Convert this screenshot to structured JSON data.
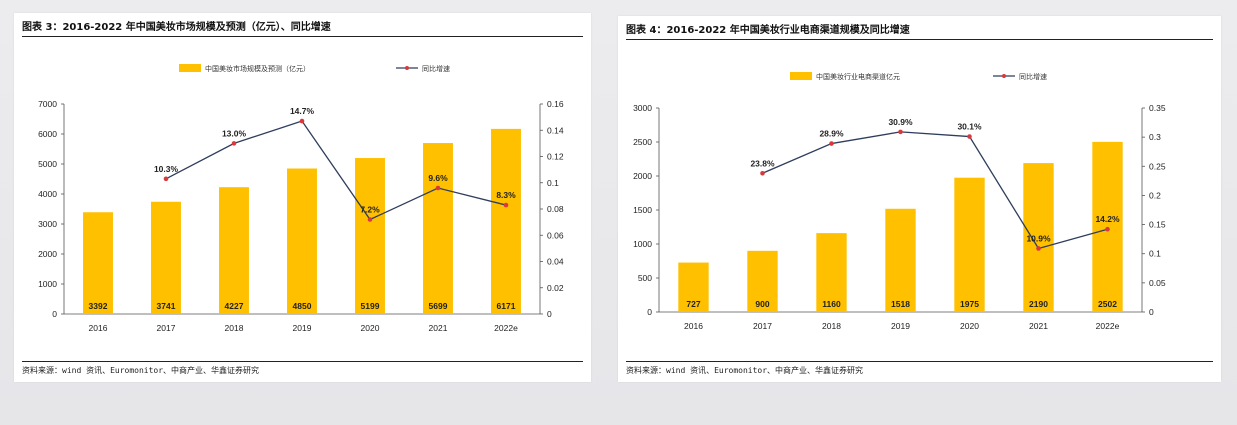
{
  "colors": {
    "bar": "#FFC000",
    "line": "#2F3E5C",
    "marker": "#D9393B"
  },
  "chart_data": [
    {
      "type": "bar+line",
      "title": "图表 3：2016-2022 年中国美妆市场规模及预测（亿元）、同比增速",
      "source": "资料来源：wind 资讯、Euromonitor、中商产业、华鑫证券研究",
      "categories": [
        "2016",
        "2017",
        "2018",
        "2019",
        "2020",
        "2021",
        "2022e"
      ],
      "bar_series": {
        "name": "中国美妆市场规模及预测（亿元）",
        "values": [
          3392,
          3741,
          4227,
          4850,
          5199,
          5699,
          6171
        ]
      },
      "line_series": {
        "name": "同比增速",
        "values": [
          null,
          0.103,
          0.13,
          0.147,
          0.072,
          0.096,
          0.083
        ],
        "labels": [
          "",
          "10.3%",
          "13.0%",
          "14.7%",
          "7.2%",
          "9.6%",
          "8.3%"
        ]
      },
      "y_left": {
        "min": 0,
        "max": 7000,
        "ticks": [
          "0",
          "1000",
          "2000",
          "3000",
          "4000",
          "5000",
          "6000",
          "7000"
        ]
      },
      "y_right": {
        "min": 0,
        "max": 0.16,
        "ticks": [
          "0",
          "0.02",
          "0.04",
          "0.06",
          "0.08",
          "0.1",
          "0.12",
          "0.14",
          "0.16"
        ]
      }
    },
    {
      "type": "bar+line",
      "title": "图表 4：2016-2022 年中国美妆行业电商渠道规模及同比增速",
      "source": "资料来源：wind 资讯、Euromonitor、中商产业、华鑫证券研究",
      "categories": [
        "2016",
        "2017",
        "2018",
        "2019",
        "2020",
        "2021",
        "2022e"
      ],
      "bar_series": {
        "name": "中国美妆行业电商渠道亿元",
        "values": [
          727,
          900,
          1160,
          1518,
          1975,
          2190,
          2502
        ]
      },
      "line_series": {
        "name": "同比增速",
        "values": [
          null,
          0.238,
          0.289,
          0.309,
          0.301,
          0.109,
          0.142
        ],
        "labels": [
          "",
          "23.8%",
          "28.9%",
          "30.9%",
          "30.1%",
          "10.9%",
          "14.2%"
        ]
      },
      "y_left": {
        "min": 0,
        "max": 3000,
        "ticks": [
          "0",
          "500",
          "1000",
          "1500",
          "2000",
          "2500",
          "3000"
        ]
      },
      "y_right": {
        "min": 0,
        "max": 0.35,
        "ticks": [
          "0",
          "0.05",
          "0.1",
          "0.15",
          "0.2",
          "0.25",
          "0.3",
          "0.35"
        ]
      }
    }
  ]
}
